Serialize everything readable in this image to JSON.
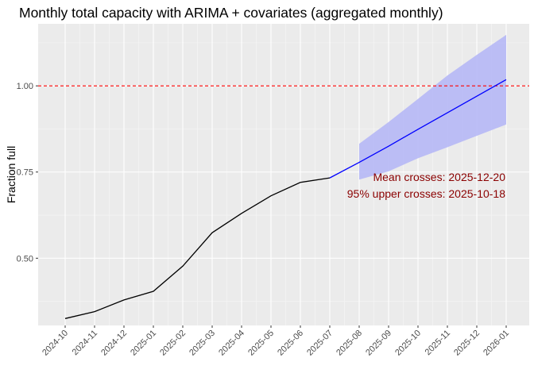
{
  "chart_data": {
    "type": "line",
    "title": "Monthly total capacity with ARIMA + covariates (aggregated monthly)",
    "xlabel": "",
    "ylabel": "Fraction full",
    "ylim": [
      0.305,
      1.18
    ],
    "y_ticks": [
      0.5,
      0.75,
      1.0
    ],
    "y_tick_labels": [
      "0.50",
      "0.75",
      "1.00"
    ],
    "x_tick_labels": [
      "2024-10",
      "2024-11",
      "2024-12",
      "2025-01",
      "2025-02",
      "2025-03",
      "2025-04",
      "2025-05",
      "2025-06",
      "2025-07",
      "2025-08",
      "2025-09",
      "2025-10",
      "2025-11",
      "2025-12",
      "2026-01"
    ],
    "grid": true,
    "series": [
      {
        "kind": "observed",
        "color": "#000000",
        "x": [
          "2024-10",
          "2024-11",
          "2024-12",
          "2025-01",
          "2025-02",
          "2025-03",
          "2025-04",
          "2025-05",
          "2025-06",
          "2025-07"
        ],
        "values": [
          0.325,
          0.345,
          0.379,
          0.404,
          0.477,
          0.574,
          0.63,
          0.681,
          0.72,
          0.733
        ]
      },
      {
        "kind": "forecast_mean",
        "color": "#0000ff",
        "x": [
          "2025-07",
          "2025-08",
          "2025-09",
          "2025-10",
          "2025-11",
          "2025-12",
          "2026-01"
        ],
        "values": [
          0.733,
          0.778,
          0.825,
          0.874,
          0.922,
          0.97,
          1.018
        ]
      }
    ],
    "forecast_band": {
      "color": "#b8bbf5",
      "x": [
        "2025-08",
        "2025-09",
        "2025-10",
        "2025-11",
        "2025-12",
        "2026-01"
      ],
      "lower": [
        0.728,
        0.752,
        0.79,
        0.822,
        0.855,
        0.888
      ],
      "upper": [
        0.832,
        0.895,
        0.962,
        1.03,
        1.09,
        1.148
      ]
    },
    "reference_line": {
      "value": 1.0,
      "color": "#ff0000",
      "style": "dashed"
    },
    "annotations": [
      {
        "text": "Mean crosses: 2025-12-20",
        "color": "#8b0000"
      },
      {
        "text": "95% upper crosses: 2025-10-18",
        "color": "#8b0000"
      }
    ],
    "panel_background": "#ebebeb"
  }
}
